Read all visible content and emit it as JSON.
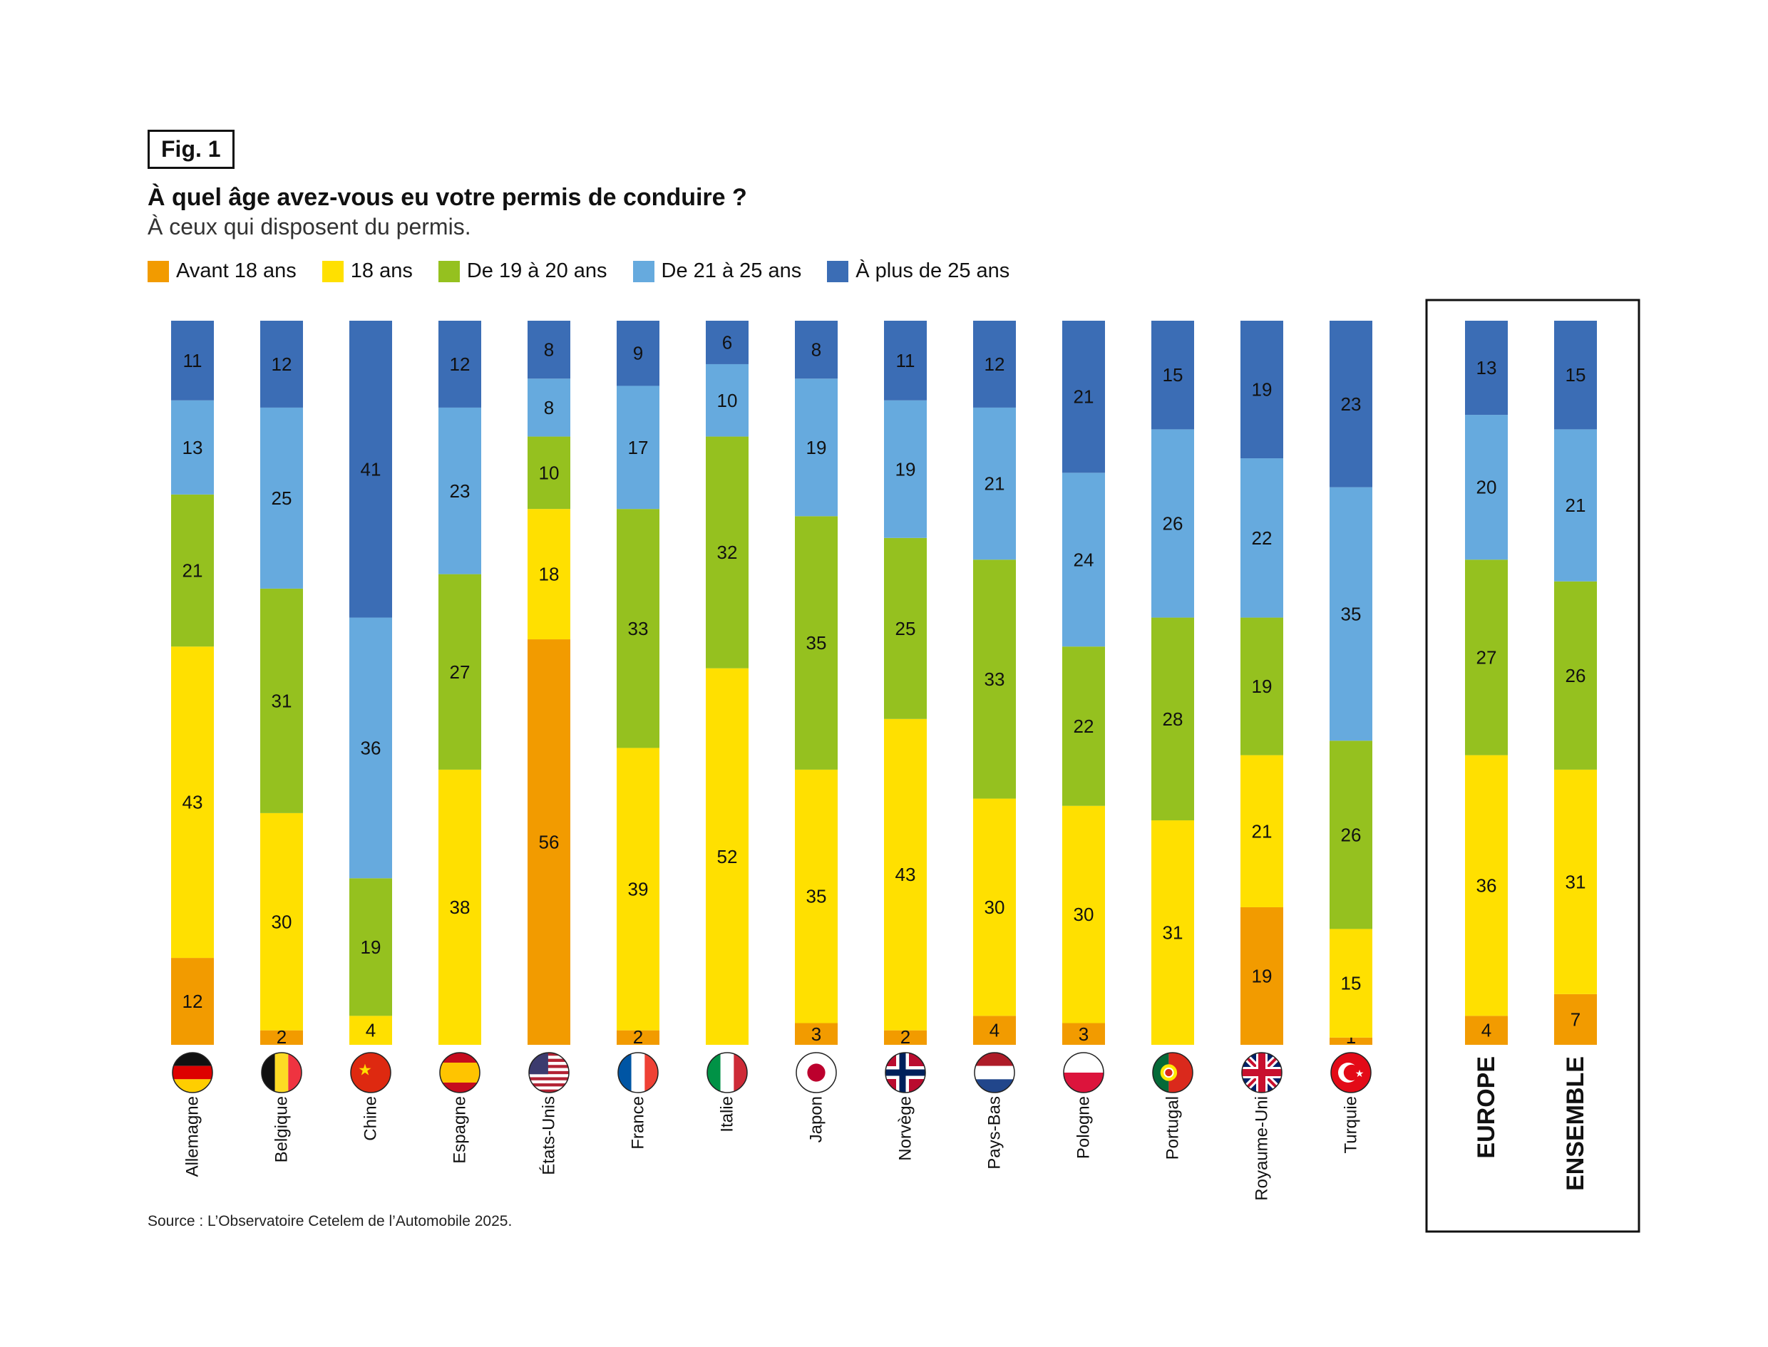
{
  "figure_label": "Fig. 1",
  "title": "À quel âge avez-vous eu votre permis de conduire ?",
  "subtitle": "À ceux qui disposent du permis.",
  "source": "Source : L’Observatoire Cetelem de l’Automobile 2025.",
  "legend": [
    {
      "label": "Avant 18 ans",
      "color": "#f29b00"
    },
    {
      "label": "18 ans",
      "color": "#ffe000"
    },
    {
      "label": "De 19 à 20 ans",
      "color": "#95c11f"
    },
    {
      "label": "De 21 à 25 ans",
      "color": "#66aade"
    },
    {
      "label": "À plus de 25 ans",
      "color": "#3b6db5"
    }
  ],
  "chart_data": {
    "type": "bar",
    "stacked": true,
    "orientation": "vertical",
    "unit": "%",
    "ylim": [
      0,
      100
    ],
    "categories": [
      "Allemagne",
      "Belgique",
      "Chine",
      "Espagne",
      "États-Unis",
      "France",
      "Italie",
      "Japon",
      "Norvège",
      "Pays-Bas",
      "Pologne",
      "Portugal",
      "Royaume-Uni",
      "Turquie",
      "EUROPE",
      "ENSEMBLE"
    ],
    "highlighted_group": [
      "EUROPE",
      "ENSEMBLE"
    ],
    "series": [
      {
        "name": "Avant 18 ans",
        "color": "#f29b00",
        "values": [
          12,
          2,
          0,
          0,
          56,
          2,
          0,
          3,
          2,
          4,
          3,
          0,
          19,
          1,
          4,
          7
        ]
      },
      {
        "name": "18 ans",
        "color": "#ffe000",
        "values": [
          43,
          30,
          4,
          38,
          18,
          39,
          52,
          35,
          43,
          30,
          30,
          31,
          21,
          15,
          36,
          31
        ]
      },
      {
        "name": "De 19 à 20 ans",
        "color": "#95c11f",
        "values": [
          21,
          31,
          19,
          27,
          10,
          33,
          32,
          35,
          25,
          33,
          22,
          28,
          19,
          26,
          27,
          26
        ]
      },
      {
        "name": "De 21 à 25 ans",
        "color": "#66aade",
        "values": [
          13,
          25,
          36,
          23,
          8,
          17,
          10,
          19,
          19,
          21,
          24,
          26,
          22,
          35,
          20,
          21
        ]
      },
      {
        "name": "À plus de 25 ans",
        "color": "#3b6db5",
        "values": [
          11,
          12,
          41,
          12,
          8,
          9,
          6,
          8,
          11,
          12,
          21,
          15,
          19,
          23,
          13,
          15
        ]
      }
    ],
    "flags": [
      "germany-flag-icon",
      "belgium-flag-icon",
      "china-flag-icon",
      "spain-flag-icon",
      "usa-flag-icon",
      "france-flag-icon",
      "italy-flag-icon",
      "japan-flag-icon",
      "norway-flag-icon",
      "netherlands-flag-icon",
      "poland-flag-icon",
      "portugal-flag-icon",
      "uk-flag-icon",
      "turkey-flag-icon",
      "",
      ""
    ]
  }
}
